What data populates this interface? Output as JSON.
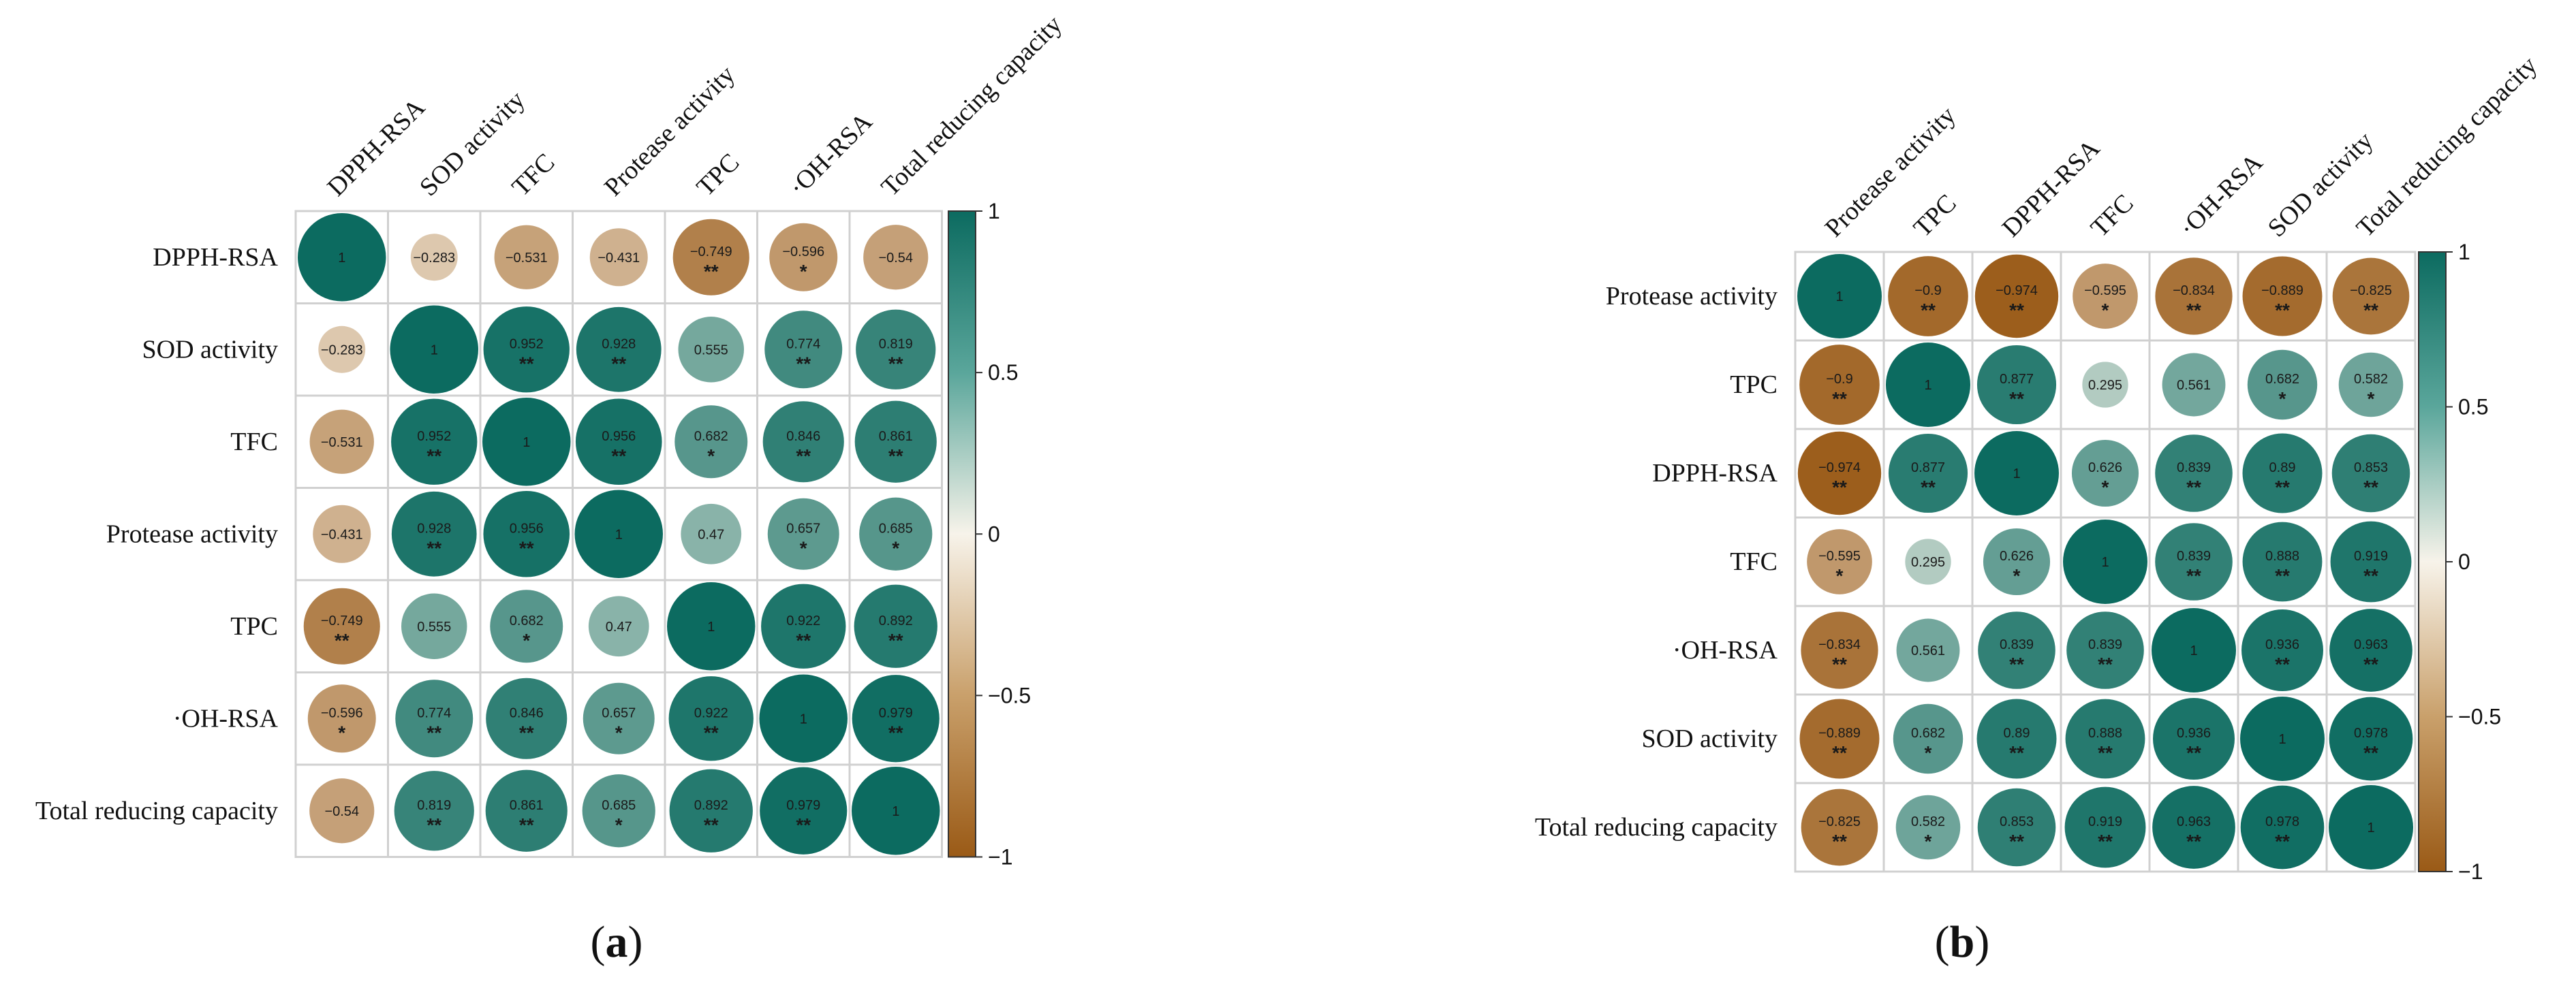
{
  "colors": {
    "positive": "#0c6b60",
    "negative": "#9a5a16",
    "neutral": "#f7f3ea",
    "grid": "#d0d0d0"
  },
  "chart_data": [
    {
      "type": "heatmap",
      "panel_label": "a",
      "labels": [
        "DPPH-RSA",
        "SOD activity",
        "TFC",
        "Protease activity",
        "TPC",
        "·OH-RSA",
        "Total reducing capacity"
      ],
      "values": [
        [
          1,
          -0.283,
          -0.531,
          -0.431,
          -0.749,
          -0.596,
          -0.54
        ],
        [
          -0.283,
          1,
          0.952,
          0.928,
          0.555,
          0.774,
          0.819
        ],
        [
          -0.531,
          0.952,
          1,
          0.956,
          0.682,
          0.846,
          0.861
        ],
        [
          -0.431,
          0.928,
          0.956,
          1,
          0.47,
          0.657,
          0.685
        ],
        [
          -0.749,
          0.555,
          0.682,
          0.47,
          1,
          0.922,
          0.892
        ],
        [
          -0.596,
          0.774,
          0.846,
          0.657,
          0.922,
          1,
          0.979
        ],
        [
          -0.54,
          0.819,
          0.861,
          0.685,
          0.892,
          0.979,
          1
        ]
      ],
      "value_labels": [
        [
          "1",
          "−0.283",
          "−0.531",
          "−0.431",
          "−0.749",
          "−0.596",
          "−0.54"
        ],
        [
          "−0.283",
          "1",
          "0.952",
          "0.928",
          "0.555",
          "0.774",
          "0.819"
        ],
        [
          "−0.531",
          "0.952",
          "1",
          "0.956",
          "0.682",
          "0.846",
          "0.861"
        ],
        [
          "−0.431",
          "0.928",
          "0.956",
          "1",
          "0.47",
          "0.657",
          "0.685"
        ],
        [
          "−0.749",
          "0.555",
          "0.682",
          "0.47",
          "1",
          "0.922",
          "0.892"
        ],
        [
          "−0.596",
          "0.774",
          "0.846",
          "0.657",
          "0.922",
          "1",
          "0.979"
        ],
        [
          "−0.54",
          "0.819",
          "0.861",
          "0.685",
          "0.892",
          "0.979",
          "1"
        ]
      ],
      "significance": [
        [
          "",
          "",
          "",
          "",
          "**",
          "*",
          ""
        ],
        [
          "",
          "",
          "**",
          "**",
          "",
          "**",
          "**"
        ],
        [
          "",
          "**",
          "",
          "**",
          "*",
          "**",
          "**"
        ],
        [
          "",
          "**",
          "**",
          "",
          "",
          "*",
          "*"
        ],
        [
          "**",
          "",
          "*",
          "",
          "",
          "**",
          "**"
        ],
        [
          "*",
          "**",
          "**",
          "*",
          "**",
          "",
          "**"
        ],
        [
          "",
          "**",
          "**",
          "*",
          "**",
          "**",
          ""
        ]
      ],
      "colorbar": {
        "range": [
          -1,
          1
        ],
        "ticks": [
          "1",
          "0.5",
          "0",
          "−0.5",
          "−1"
        ],
        "tick_values": [
          1,
          0.5,
          0,
          -0.5,
          -1
        ]
      }
    },
    {
      "type": "heatmap",
      "panel_label": "b",
      "labels": [
        "Protease activity",
        "TPC",
        "DPPH-RSA",
        "TFC",
        "·OH-RSA",
        "SOD activity",
        "Total reducing capacity"
      ],
      "values": [
        [
          1,
          -0.9,
          -0.974,
          -0.595,
          -0.834,
          -0.889,
          -0.825
        ],
        [
          -0.9,
          1,
          0.877,
          0.295,
          0.561,
          0.682,
          0.582
        ],
        [
          -0.974,
          0.877,
          1,
          0.626,
          0.839,
          0.89,
          0.853
        ],
        [
          -0.595,
          0.295,
          0.626,
          1,
          0.839,
          0.888,
          0.919
        ],
        [
          -0.834,
          0.561,
          0.839,
          0.839,
          1,
          0.936,
          0.963
        ],
        [
          -0.889,
          0.682,
          0.89,
          0.888,
          0.936,
          1,
          0.978
        ],
        [
          -0.825,
          0.582,
          0.853,
          0.919,
          0.963,
          0.978,
          1
        ]
      ],
      "value_labels": [
        [
          "1",
          "−0.9",
          "−0.974",
          "−0.595",
          "−0.834",
          "−0.889",
          "−0.825"
        ],
        [
          "−0.9",
          "1",
          "0.877",
          "0.295",
          "0.561",
          "0.682",
          "0.582"
        ],
        [
          "−0.974",
          "0.877",
          "1",
          "0.626",
          "0.839",
          "0.89",
          "0.853"
        ],
        [
          "−0.595",
          "0.295",
          "0.626",
          "1",
          "0.839",
          "0.888",
          "0.919"
        ],
        [
          "−0.834",
          "0.561",
          "0.839",
          "0.839",
          "1",
          "0.936",
          "0.963"
        ],
        [
          "−0.889",
          "0.682",
          "0.89",
          "0.888",
          "0.936",
          "1",
          "0.978"
        ],
        [
          "−0.825",
          "0.582",
          "0.853",
          "0.919",
          "0.963",
          "0.978",
          "1"
        ]
      ],
      "significance": [
        [
          "",
          "**",
          "**",
          "*",
          "**",
          "**",
          "**"
        ],
        [
          "**",
          "",
          "**",
          "",
          "",
          "*",
          "*"
        ],
        [
          "**",
          "**",
          "",
          "*",
          "**",
          "**",
          "**"
        ],
        [
          "*",
          "",
          "*",
          "",
          "**",
          "**",
          "**"
        ],
        [
          "**",
          "",
          "**",
          "**",
          "",
          "**",
          "**"
        ],
        [
          "**",
          "*",
          "**",
          "**",
          "**",
          "",
          "**"
        ],
        [
          "**",
          "*",
          "**",
          "**",
          "**",
          "**",
          ""
        ]
      ],
      "colorbar": {
        "range": [
          -1,
          1
        ],
        "ticks": [
          "1",
          "0.5",
          "0",
          "−0.5",
          "−1"
        ],
        "tick_values": [
          1,
          0.5,
          0,
          -0.5,
          -1
        ]
      }
    }
  ]
}
